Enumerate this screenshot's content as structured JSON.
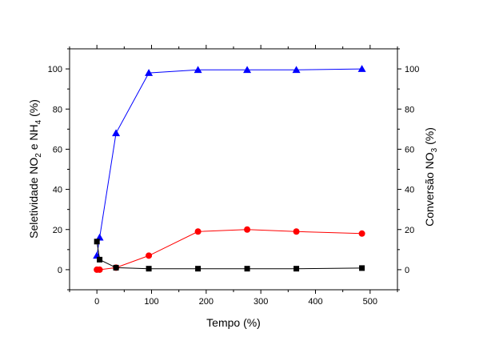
{
  "chart_data": {
    "type": "line",
    "xlabel": "Tempo (%)",
    "ylabel_left": {
      "prefix": "Seletividade NO",
      "sub1": "2",
      "middle": " e NH",
      "sub2": "4",
      "suffix": " (%)"
    },
    "ylabel_right": {
      "prefix": "Conversão NO",
      "sub1": "3",
      "suffix": " (%)"
    },
    "xlim": [
      -50,
      550
    ],
    "ylim": [
      -10,
      110
    ],
    "x_ticks": [
      0,
      100,
      200,
      300,
      400,
      500
    ],
    "y_ticks": [
      0,
      20,
      40,
      60,
      80,
      100
    ],
    "grid": false,
    "series": [
      {
        "marker": "triangle",
        "color": "#0000ff",
        "axis": "right",
        "points": [
          [
            0,
            7
          ],
          [
            5,
            16
          ],
          [
            35,
            68
          ],
          [
            95,
            98
          ],
          [
            185,
            99.5
          ],
          [
            275,
            99.5
          ],
          [
            365,
            99.5
          ],
          [
            485,
            100
          ]
        ]
      },
      {
        "marker": "circle",
        "color": "#ff0000",
        "axis": "left",
        "points": [
          [
            0,
            0
          ],
          [
            5,
            0
          ],
          [
            35,
            1
          ],
          [
            95,
            7
          ],
          [
            185,
            19
          ],
          [
            275,
            20
          ],
          [
            365,
            19
          ],
          [
            485,
            18
          ]
        ]
      },
      {
        "marker": "square",
        "color": "#000000",
        "axis": "left",
        "points": [
          [
            0,
            14
          ],
          [
            5,
            5
          ],
          [
            35,
            1
          ],
          [
            95,
            0.5
          ],
          [
            185,
            0.5
          ],
          [
            275,
            0.5
          ],
          [
            365,
            0.5
          ],
          [
            485,
            0.8
          ]
        ]
      }
    ]
  }
}
